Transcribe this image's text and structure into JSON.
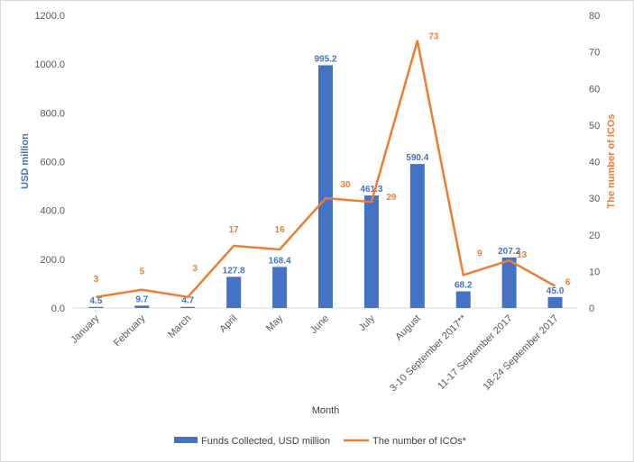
{
  "chart_data": {
    "type": "bar",
    "categories": [
      "January",
      "February",
      "March",
      "April",
      "May",
      "June",
      "July",
      "August",
      "3-10 September 2017**",
      "11-17 September 2017",
      "18-24 September 2017"
    ],
    "series": [
      {
        "name": "Funds Collected, USD million",
        "type": "bar",
        "axis": "left",
        "values": [
          4.5,
          9.7,
          4.7,
          127.8,
          168.4,
          995.2,
          461.3,
          590.4,
          68.2,
          207.2,
          45.0
        ],
        "labels": [
          "4.5",
          "9.7",
          "4.7",
          "127.8",
          "168.4",
          "995.2",
          "461.3",
          "590.4",
          "68.2",
          "207.2",
          "45.0"
        ],
        "color": "#4472c4"
      },
      {
        "name": "The number of ICOs*",
        "type": "line",
        "axis": "right",
        "values": [
          3,
          5,
          3,
          17,
          16,
          30,
          29,
          73,
          9,
          13,
          6
        ],
        "labels": [
          "3",
          "5",
          "3",
          "17",
          "16",
          "30",
          "29",
          "73",
          "9",
          "13",
          "6"
        ],
        "color": "#ed7d31"
      }
    ],
    "xlabel": "Month",
    "ylabel": "USD million",
    "y2label": "The number of ICOs",
    "ylim": [
      0,
      1200
    ],
    "y2lim": [
      0,
      80
    ],
    "yticks": [
      "0.0",
      "200.0",
      "400.0",
      "600.0",
      "800.0",
      "1000.0",
      "1200.0"
    ],
    "y2ticks": [
      "0",
      "10",
      "20",
      "30",
      "40",
      "50",
      "60",
      "70",
      "80"
    ],
    "grid": false,
    "legend": "bottom"
  }
}
